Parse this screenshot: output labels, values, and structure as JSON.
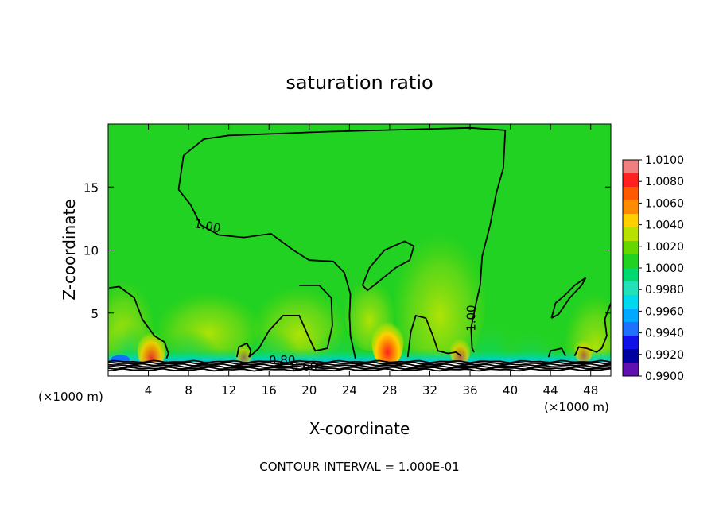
{
  "chart_data": {
    "type": "heatmap",
    "title": "saturation ratio",
    "xlabel": "X-coordinate",
    "ylabel": "Z-coordinate",
    "x_unit": "(×1000 m)",
    "xlim": [
      0,
      50
    ],
    "ylim": [
      0,
      20
    ],
    "x_ticks": [
      4,
      8,
      12,
      16,
      20,
      24,
      28,
      32,
      36,
      40,
      44,
      48
    ],
    "y_ticks": [
      5,
      10,
      15
    ],
    "colorbar": {
      "labels": [
        "1.0100",
        "1.0080",
        "1.0060",
        "1.0040",
        "1.0020",
        "1.0000",
        "0.9980",
        "0.9960",
        "0.9940",
        "0.9920",
        "0.9900"
      ],
      "colors": [
        "#f08080",
        "#ff2020",
        "#ff5a00",
        "#ff8c00",
        "#ffd000",
        "#b8e000",
        "#66d800",
        "#22d222",
        "#00d870",
        "#22e0b8",
        "#00d8f0",
        "#00a8ff",
        "#2070ff",
        "#1010e8",
        "#0000a0",
        "#6010b0"
      ]
    },
    "contour_labels": [
      "1.00",
      "1.00",
      "0.80",
      "0.60"
    ],
    "contour_levels": [
      1.0,
      0.8,
      0.6
    ],
    "contour_interval_text": "CONTOUR INTERVAL = 1.000E-01",
    "hotspots": [
      {
        "x": 4.3,
        "z": 1.5,
        "value": 1.008
      },
      {
        "x": 27.8,
        "z": 2.0,
        "value": 1.01
      },
      {
        "x": 35.0,
        "z": 1.6,
        "value": 1.004
      },
      {
        "x": 47.3,
        "z": 1.7,
        "value": 1.003
      },
      {
        "x": 13.5,
        "z": 1.5,
        "value": 1.002
      }
    ],
    "contour_1_00_main": [
      [
        7.0,
        14.8
      ],
      [
        7.5,
        17.5
      ],
      [
        9.5,
        18.8
      ],
      [
        12,
        19.1
      ],
      [
        22,
        19.4
      ],
      [
        36,
        19.7
      ],
      [
        39.5,
        19.5
      ],
      [
        39.3,
        16.5
      ],
      [
        38.6,
        14.5
      ],
      [
        38,
        12
      ],
      [
        37.2,
        9.5
      ],
      [
        37,
        7.2
      ],
      [
        36.6,
        5.8
      ],
      [
        36.1,
        3.8
      ],
      [
        36.2,
        2.2
      ],
      [
        36.4,
        1.9
      ]
    ],
    "contour_1_00_sub": [
      [
        7.0,
        14.8
      ],
      [
        8.2,
        13.6
      ],
      [
        9.2,
        12.0
      ],
      [
        11.0,
        11.2
      ],
      [
        13.5,
        11.0
      ],
      [
        16.2,
        11.3
      ],
      [
        18.4,
        10.0
      ],
      [
        20.0,
        9.2
      ],
      [
        22.4,
        9.1
      ],
      [
        23.5,
        8.2
      ],
      [
        24.1,
        6.5
      ],
      [
        24.0,
        4.8
      ],
      [
        24.1,
        3.2
      ],
      [
        24.6,
        1.4
      ]
    ],
    "contour_loop_mid": [
      [
        19.0,
        7.2
      ],
      [
        21.0,
        7.2
      ],
      [
        22.2,
        6.2
      ],
      [
        22.3,
        4.0
      ],
      [
        21.8,
        2.2
      ],
      [
        20.6,
        2.0
      ],
      [
        20.0,
        3.0
      ],
      [
        19.0,
        4.8
      ],
      [
        17.4,
        4.8
      ],
      [
        16.0,
        3.6
      ],
      [
        15.0,
        2.2
      ],
      [
        14.0,
        1.5
      ]
    ],
    "contour_loop_small": [
      [
        25.3,
        7.2
      ],
      [
        26.0,
        8.6
      ],
      [
        27.5,
        10.0
      ],
      [
        29.5,
        10.7
      ],
      [
        30.4,
        10.3
      ],
      [
        30.0,
        9.2
      ],
      [
        28.6,
        8.6
      ],
      [
        26.6,
        7.3
      ],
      [
        25.8,
        6.8
      ],
      [
        25.3,
        7.2
      ]
    ],
    "contour_left": [
      [
        0.1,
        7.0
      ],
      [
        1.1,
        7.1
      ],
      [
        2.6,
        6.2
      ],
      [
        3.4,
        4.5
      ],
      [
        4.6,
        3.2
      ],
      [
        5.6,
        2.7
      ],
      [
        6.0,
        1.8
      ],
      [
        5.8,
        1.4
      ]
    ],
    "contour_center_left": [
      [
        12.8,
        1.5
      ],
      [
        13.0,
        2.3
      ],
      [
        13.8,
        2.6
      ],
      [
        14.2,
        2.0
      ],
      [
        14.0,
        1.5
      ]
    ],
    "contour_hot28": [
      [
        29.8,
        1.5
      ],
      [
        30.1,
        3.5
      ],
      [
        30.6,
        4.8
      ],
      [
        31.6,
        4.6
      ],
      [
        32.3,
        3.2
      ],
      [
        32.8,
        2.0
      ],
      [
        33.8,
        1.8
      ],
      [
        34.6,
        1.9
      ],
      [
        35.1,
        1.6
      ]
    ],
    "contour_right": [
      [
        43.8,
        1.5
      ],
      [
        44.0,
        2.0
      ],
      [
        45.1,
        2.2
      ],
      [
        45.5,
        1.6
      ]
    ],
    "contour_right_loop": [
      [
        44.1,
        4.6
      ],
      [
        44.8,
        4.9
      ],
      [
        45.9,
        6.2
      ],
      [
        47.1,
        7.2
      ],
      [
        47.5,
        7.8
      ],
      [
        46.4,
        7.2
      ],
      [
        45.4,
        6.4
      ],
      [
        44.5,
        5.8
      ],
      [
        44.1,
        4.6
      ]
    ],
    "contour_far_right": [
      [
        50,
        5.8
      ],
      [
        49.4,
        4.5
      ],
      [
        49.6,
        3.2
      ],
      [
        49.1,
        2.2
      ],
      [
        48.6,
        1.9
      ],
      [
        47.6,
        2.2
      ],
      [
        46.8,
        2.3
      ],
      [
        46.4,
        1.6
      ]
    ]
  }
}
